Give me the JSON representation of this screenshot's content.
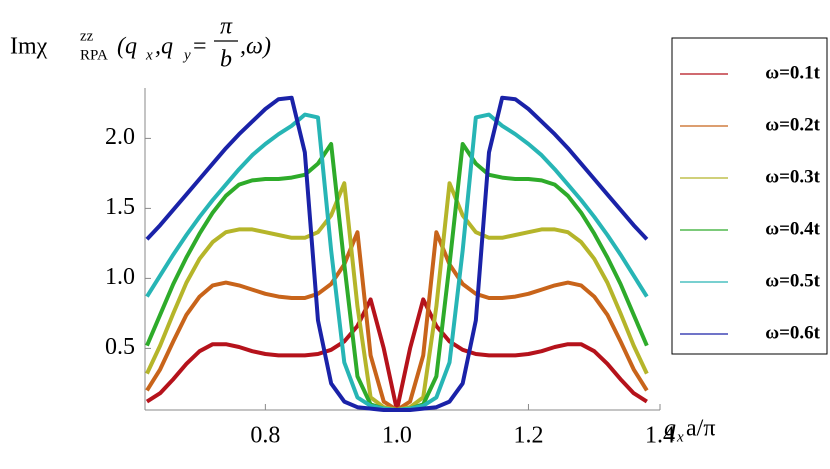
{
  "chart_data": {
    "type": "line",
    "title": {
      "lead": "Imχ",
      "sup": "zz",
      "sub": "RPA",
      "open": "(q",
      "qx_sub": "x",
      "mid": ",q",
      "qy_sub": "y",
      "eq": "=",
      "numerator": "π",
      "denominator": "b",
      "close": ",ω)"
    },
    "x_label": {
      "base": "q",
      "sub": "x",
      "rest": "a/π"
    },
    "x": [
      0.62,
      0.64,
      0.66,
      0.68,
      0.7,
      0.72,
      0.74,
      0.76,
      0.78,
      0.8,
      0.82,
      0.84,
      0.86,
      0.88,
      0.9,
      0.92,
      0.94,
      0.96,
      0.98,
      1.0,
      1.02,
      1.04,
      1.06,
      1.08,
      1.1,
      1.12,
      1.14,
      1.16,
      1.18,
      1.2,
      1.22,
      1.24,
      1.26,
      1.28,
      1.3,
      1.32,
      1.34,
      1.36,
      1.38
    ],
    "series": [
      {
        "name": "ω=0.1t",
        "color": "#b5121b",
        "values": [
          0.12,
          0.18,
          0.28,
          0.39,
          0.48,
          0.53,
          0.53,
          0.51,
          0.48,
          0.46,
          0.45,
          0.45,
          0.45,
          0.46,
          0.49,
          0.55,
          0.66,
          0.85,
          0.5,
          0.06,
          0.5,
          0.85,
          0.66,
          0.55,
          0.49,
          0.46,
          0.45,
          0.45,
          0.45,
          0.46,
          0.48,
          0.51,
          0.53,
          0.53,
          0.48,
          0.39,
          0.28,
          0.18,
          0.12
        ]
      },
      {
        "name": "ω=0.2t",
        "color": "#c8641a",
        "values": [
          0.2,
          0.35,
          0.55,
          0.74,
          0.87,
          0.95,
          0.97,
          0.95,
          0.92,
          0.89,
          0.87,
          0.86,
          0.86,
          0.89,
          0.96,
          1.1,
          1.33,
          0.45,
          0.12,
          0.06,
          0.12,
          0.45,
          1.33,
          1.1,
          0.96,
          0.89,
          0.86,
          0.86,
          0.87,
          0.89,
          0.92,
          0.95,
          0.97,
          0.95,
          0.87,
          0.74,
          0.55,
          0.35,
          0.2
        ]
      },
      {
        "name": "ω=0.3t",
        "color": "#b5b52a",
        "values": [
          0.32,
          0.52,
          0.75,
          0.97,
          1.14,
          1.26,
          1.33,
          1.35,
          1.35,
          1.33,
          1.31,
          1.29,
          1.29,
          1.33,
          1.45,
          1.68,
          0.8,
          0.15,
          0.08,
          0.06,
          0.08,
          0.15,
          0.8,
          1.68,
          1.45,
          1.33,
          1.29,
          1.29,
          1.31,
          1.33,
          1.35,
          1.35,
          1.33,
          1.26,
          1.14,
          0.97,
          0.75,
          0.52,
          0.32
        ]
      },
      {
        "name": "ω=0.4t",
        "color": "#2eab2a",
        "values": [
          0.52,
          0.74,
          0.96,
          1.15,
          1.32,
          1.47,
          1.59,
          1.67,
          1.7,
          1.71,
          1.71,
          1.72,
          1.74,
          1.82,
          1.96,
          1.1,
          0.3,
          0.1,
          0.07,
          0.06,
          0.07,
          0.1,
          0.3,
          1.1,
          1.96,
          1.82,
          1.74,
          1.72,
          1.71,
          1.71,
          1.7,
          1.67,
          1.59,
          1.47,
          1.32,
          1.15,
          0.96,
          0.74,
          0.52
        ]
      },
      {
        "name": "ω=0.5t",
        "color": "#27b5b5",
        "values": [
          0.87,
          1.02,
          1.17,
          1.31,
          1.44,
          1.56,
          1.67,
          1.78,
          1.88,
          1.96,
          2.03,
          2.09,
          2.17,
          2.15,
          1.2,
          0.4,
          0.15,
          0.09,
          0.07,
          0.06,
          0.07,
          0.09,
          0.15,
          0.4,
          1.2,
          2.15,
          2.17,
          2.09,
          2.03,
          1.96,
          1.88,
          1.78,
          1.67,
          1.56,
          1.44,
          1.31,
          1.17,
          1.02,
          0.87
        ]
      },
      {
        "name": "ω=0.6t",
        "color": "#1a22a8",
        "values": [
          1.28,
          1.38,
          1.49,
          1.6,
          1.71,
          1.82,
          1.93,
          2.03,
          2.12,
          2.21,
          2.28,
          2.29,
          1.9,
          0.7,
          0.25,
          0.12,
          0.08,
          0.07,
          0.06,
          0.06,
          0.06,
          0.07,
          0.08,
          0.12,
          0.25,
          0.7,
          1.9,
          2.29,
          2.28,
          2.21,
          2.12,
          2.03,
          1.93,
          1.82,
          1.71,
          1.6,
          1.49,
          1.38,
          1.28
        ]
      }
    ],
    "xlim": [
      0.617,
      1.4
    ],
    "ylim": [
      0.06,
      2.36
    ],
    "xticks": [
      0.8,
      {
        "value": 1,
        "label": "1.0"
      },
      1.2,
      1.4
    ],
    "yticks": [
      0.5,
      {
        "value": 1,
        "label": "1.0"
      },
      1.5,
      {
        "value": 2,
        "label": "2.0"
      }
    ],
    "legend": "right"
  }
}
